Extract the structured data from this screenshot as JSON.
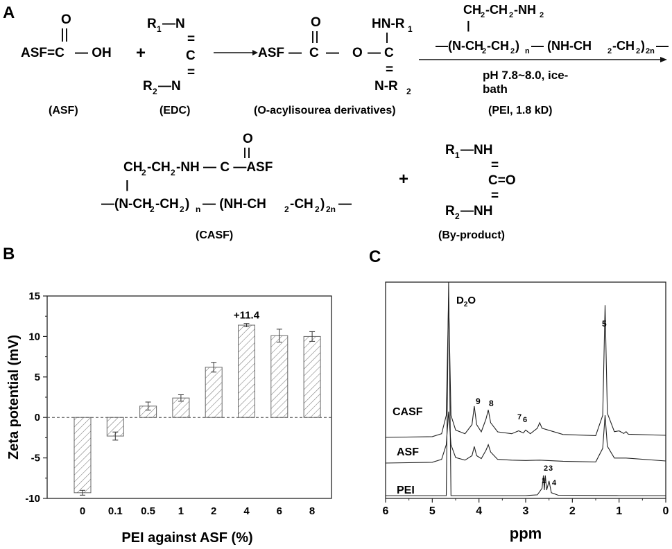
{
  "panels": {
    "a": "A",
    "b": "B",
    "c": "C"
  },
  "scheme": {
    "asf_formula": [
      "O",
      "ASF=C",
      "— OH"
    ],
    "plus": "+",
    "edc_formula": [
      "R",
      "1",
      "—N",
      "=",
      "C",
      "=",
      "R",
      "2",
      "—N"
    ],
    "intermediate_formula": [
      "O",
      "ASF",
      "—",
      "C",
      "—",
      "O",
      "—",
      "HN-R",
      "1",
      "C",
      "=",
      "N-R",
      "2"
    ],
    "pei_formula": [
      "CH",
      "2",
      "-CH",
      "2",
      "-NH",
      "2",
      "|",
      "—(N-CH",
      "2",
      "-CH",
      "2",
      " )",
      "n",
      "— (NH-CH",
      "2",
      "-CH",
      "2",
      ")",
      "2n",
      "—"
    ],
    "conditions": [
      "pH 7.8~8.0, ice-",
      "bath"
    ],
    "casf_formula": [
      "O",
      "CH",
      "2",
      "-CH",
      "2",
      "-NH — C —ASF",
      "|",
      "—(N-CH",
      "2",
      "-CH",
      "2",
      " )",
      "n",
      "— (NH-CH",
      "2",
      "-CH",
      "2",
      ")",
      "2n",
      "—"
    ],
    "byproduct_formula": [
      "R",
      "1",
      "—NH",
      "=",
      "C=O",
      "=",
      "R",
      "2",
      "—NH"
    ],
    "labels": {
      "asf": "(ASF)",
      "edc": "(EDC)",
      "intermediate": "(O-acylisourea derivatives)",
      "pei": "(PEI, 1.8 kD)",
      "casf": "(CASF)",
      "byproduct": "(By-product)"
    }
  },
  "chart_data": [
    {
      "type": "bar",
      "categories": [
        "0",
        "0.1",
        "0.5",
        "1",
        "2",
        "4",
        "6",
        "8"
      ],
      "values": [
        -9.3,
        -2.3,
        1.4,
        2.4,
        6.2,
        11.4,
        10.1,
        10.0
      ],
      "errors": [
        0.3,
        0.5,
        0.5,
        0.4,
        0.6,
        0.2,
        0.8,
        0.6
      ],
      "xlabel": "PEI against ASF (%)",
      "ylabel": "Zeta potential (mV)",
      "ylim": [
        -10,
        15
      ],
      "yticks": [
        "-10",
        "-5",
        "0",
        "5",
        "10",
        "15"
      ],
      "annotation": "+11.4",
      "zero_line": "dashed",
      "bar_fill": "hatched"
    },
    {
      "type": "line",
      "xlabel": "ppm",
      "xlim": [
        6,
        0
      ],
      "xticks": [
        "6",
        "5",
        "4",
        "3",
        "2",
        "1",
        "0"
      ],
      "series": [
        {
          "name": "CASF",
          "x": [
            6.0,
            5.0,
            4.8,
            4.7,
            4.65,
            4.6,
            4.5,
            4.3,
            4.15,
            4.1,
            4.05,
            3.95,
            3.85,
            3.8,
            3.75,
            3.6,
            3.3,
            3.15,
            3.05,
            3.0,
            2.9,
            2.75,
            2.7,
            2.65,
            2.2,
            1.5,
            1.35,
            1.3,
            1.25,
            1.1,
            1.0,
            0.9,
            0.85,
            0.8,
            0.0
          ],
          "y": [
            0,
            0.2,
            1,
            6,
            38,
            6,
            2,
            1,
            3.5,
            8.5,
            3.5,
            1.5,
            5,
            7.5,
            4,
            1.5,
            1,
            1.8,
            1.2,
            2,
            1,
            2.5,
            4,
            2.5,
            0.8,
            0.5,
            6,
            36,
            6,
            1,
            1.2,
            0.5,
            1,
            0.3,
            0
          ]
        },
        {
          "name": "ASF",
          "x": [
            6.0,
            5.0,
            4.8,
            4.7,
            4.65,
            4.6,
            4.5,
            4.3,
            4.15,
            4.1,
            4.05,
            3.95,
            3.85,
            3.8,
            3.75,
            3.6,
            3.3,
            3.0,
            2.7,
            2.2,
            1.5,
            1.35,
            1.3,
            1.25,
            1.1,
            1.0,
            0.85,
            0.0
          ],
          "y": [
            0,
            0.2,
            1,
            5,
            14,
            5,
            1.5,
            0.8,
            2,
            4.5,
            2,
            1.2,
            3.5,
            5,
            3,
            1,
            0.8,
            0.7,
            0.8,
            0.5,
            0.3,
            4,
            13,
            4,
            0.8,
            0.8,
            0.8,
            0
          ]
        },
        {
          "name": "PEI",
          "x": [
            6.0,
            5.0,
            4.7,
            4.65,
            4.6,
            4.5,
            3.0,
            2.75,
            2.65,
            2.62,
            2.6,
            2.58,
            2.55,
            2.5,
            2.45,
            2.3,
            1.0,
            0.0
          ],
          "y": [
            0,
            0,
            0,
            60,
            0,
            0,
            0,
            0.2,
            2,
            5.5,
            1.5,
            5.5,
            1.5,
            4,
            0.8,
            0.1,
            0,
            0
          ]
        }
      ],
      "annotations": [
        "D2O",
        "9",
        "8",
        "7",
        "6",
        "5",
        "2",
        "3",
        "1",
        "4"
      ]
    }
  ]
}
